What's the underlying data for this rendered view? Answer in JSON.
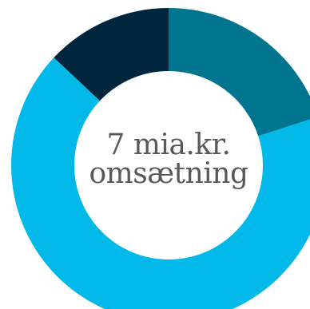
{
  "chart_data": {
    "type": "pie",
    "donut": true,
    "center_text": [
      "7 mia.kr.",
      "omsætning"
    ],
    "slices": [
      {
        "value": 20,
        "color": "#00758f"
      },
      {
        "value": 67,
        "color": "#00b9e8"
      },
      {
        "value": 13,
        "color": "#00263e"
      }
    ],
    "start_angle_deg": 0,
    "direction": "clockwise",
    "legend": "none"
  }
}
